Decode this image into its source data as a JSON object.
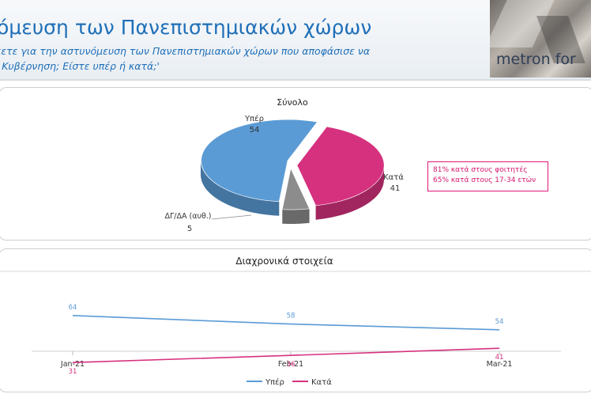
{
  "header": {
    "title": "όμευση των Πανεπιστημιακών χώρων",
    "subtitle_line1": "κετε για την αστυνόμευση των Πανεπιστημιακών χώρων που αποφάσισε να",
    "subtitle_line2": "ι Κυβέρνηση; Είστε υπέρ ή κατά;'",
    "logo_text": "metron for"
  },
  "pie_panel": {
    "callout": {
      "line1": "81% κατά στους φοιτητές",
      "line2": "65% κατά στους 17-34 ετών",
      "color": "#e0187a"
    }
  },
  "line_panel": {},
  "chart_data": [
    {
      "type": "pie",
      "title": "Σύνολο",
      "categories": [
        "Υπέρ",
        "Κατά",
        "ΔΓ/ΔΑ (αυθ.)"
      ],
      "values": [
        54,
        41,
        5
      ],
      "colors": [
        "#5b9bd5",
        "#d6317f",
        "#8c8c8c"
      ],
      "labels": {
        "yes_name": "Υπέρ",
        "yes_value": "54",
        "no_name": "Κατά",
        "no_value": "41",
        "dk_name": "ΔΓ/ΔΑ (αυθ.)",
        "dk_value": "5"
      }
    },
    {
      "type": "line",
      "title": "Διαχρονικά στοιχεία",
      "categories": [
        "Jan-21",
        "Feb-21",
        "Mar-21"
      ],
      "series": [
        {
          "name": "Υπέρ",
          "values": [
            64,
            58,
            54
          ],
          "color": "#5b9bd5"
        },
        {
          "name": "Κατά",
          "values": [
            31,
            36,
            41
          ],
          "color": "#d6317f"
        }
      ],
      "ylim": [
        0,
        100
      ],
      "grid": false,
      "legend": "bottom"
    }
  ]
}
